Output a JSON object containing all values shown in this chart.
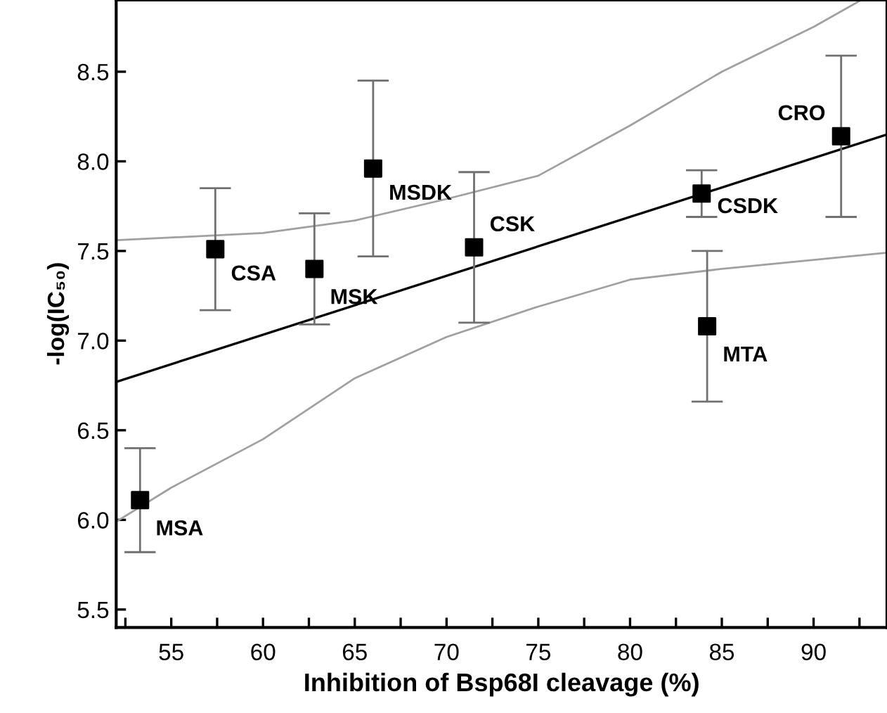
{
  "chart_data": {
    "type": "scatter",
    "xlabel": "Inhibition of Bsp68I cleavage (%)",
    "ylabel": "-log(IC₅₀)",
    "xlim": [
      52,
      94
    ],
    "ylim": [
      5.4,
      8.9
    ],
    "xticks": [
      55,
      60,
      65,
      70,
      75,
      80,
      85,
      90
    ],
    "yticks": [
      5.5,
      {
        "value": 6,
        "label": "6.0"
      },
      6.5,
      {
        "value": 7,
        "label": "7.0"
      },
      7.5,
      {
        "value": 8,
        "label": "8.0"
      },
      8.5
    ],
    "grid": false,
    "legend": false,
    "marker": "square",
    "series": [
      {
        "type": "line",
        "marker": "none",
        "color": "#000000",
        "x": [
          52,
          94
        ],
        "values": [
          6.77,
          8.15
        ]
      },
      {
        "type": "line",
        "marker": "none",
        "color": "#a0a0a0",
        "x": [
          52,
          60,
          65,
          70,
          75,
          80,
          85,
          90,
          92.6
        ],
        "values": [
          7.56,
          7.6,
          7.67,
          7.79,
          7.92,
          8.2,
          8.5,
          8.75,
          8.9
        ]
      },
      {
        "type": "line",
        "marker": "none",
        "color": "#a0a0a0",
        "x": [
          52,
          55,
          60,
          65,
          70,
          75,
          80,
          85,
          90,
          94
        ],
        "values": [
          5.99,
          6.18,
          6.45,
          6.79,
          7.02,
          7.19,
          7.34,
          7.4,
          7.45,
          7.49
        ]
      },
      {
        "color": "#000000",
        "x": [
          53.3,
          57.4,
          62.8,
          66.0,
          71.5,
          83.9,
          84.2,
          91.5
        ],
        "values": [
          6.11,
          7.51,
          7.4,
          7.96,
          7.52,
          7.82,
          7.08,
          8.14
        ],
        "errors": [
          [
            5.82,
            6.4
          ],
          [
            7.17,
            7.85
          ],
          [
            7.09,
            7.71
          ],
          [
            7.47,
            8.45
          ],
          [
            7.1,
            7.94
          ],
          [
            7.69,
            7.95
          ],
          [
            6.66,
            7.5
          ],
          [
            7.69,
            8.59
          ]
        ]
      }
    ],
    "annotations": [
      {
        "text": "MSA",
        "x": 53.3,
        "y": 6.11
      },
      {
        "text": "CSA",
        "x": 57.4,
        "y": 7.51
      },
      {
        "text": "MSK",
        "x": 62.8,
        "y": 7.4
      },
      {
        "text": "MSDK",
        "x": 66.0,
        "y": 7.96
      },
      {
        "text": "CSK",
        "x": 71.5,
        "y": 7.52
      },
      {
        "text": "CSDK",
        "x": 83.9,
        "y": 7.82
      },
      {
        "text": "MTA",
        "x": 84.2,
        "y": 7.08
      },
      {
        "text": "CRO",
        "x": 91.5,
        "y": 8.14
      }
    ]
  }
}
